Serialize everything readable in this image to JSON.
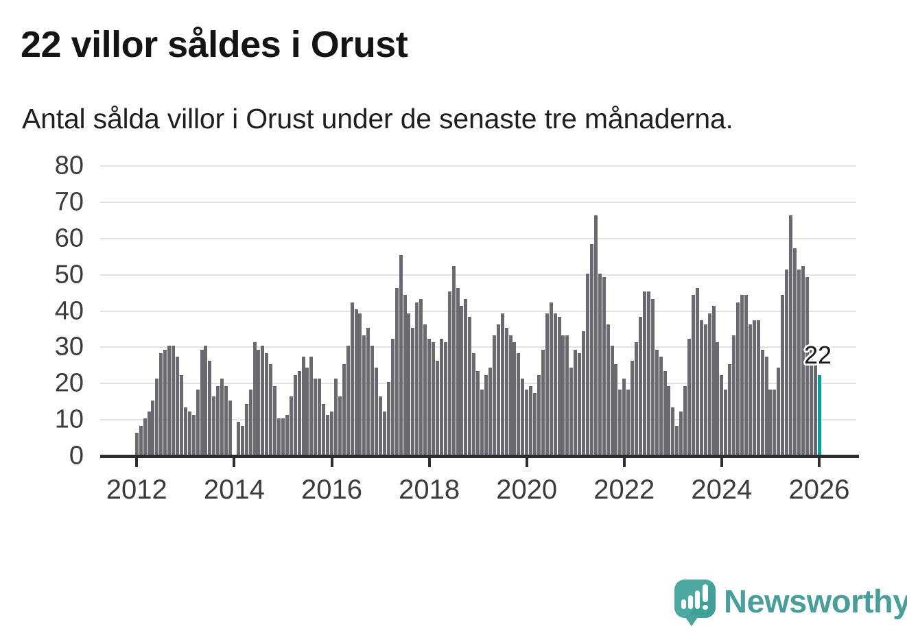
{
  "header": {
    "title": "22 villor såldes i Orust",
    "subtitle": "Antal sålda villor i Orust under de senaste tre månaderna."
  },
  "chart_data": {
    "type": "bar",
    "title": "22 villor såldes i Orust",
    "subtitle": "Antal sålda villor i Orust under de senaste tre månaderna.",
    "xlabel": "",
    "ylabel": "",
    "x_start": "2012-01",
    "x_frequency": "monthly",
    "x_tick_labels": [
      "2012",
      "2014",
      "2016",
      "2018",
      "2020",
      "2022",
      "2024",
      "2026"
    ],
    "x_tick_indices": [
      0,
      24,
      48,
      72,
      96,
      120,
      144,
      168
    ],
    "y_ticks": [
      0,
      10,
      20,
      30,
      40,
      50,
      60,
      70,
      80
    ],
    "ylim": [
      0,
      80
    ],
    "grid": "horizontal",
    "legend": "none",
    "values": [
      6,
      8,
      10,
      12,
      15,
      21,
      28,
      29,
      30,
      30,
      27,
      22,
      13,
      12,
      11,
      18,
      29,
      30,
      26,
      16,
      19,
      21,
      19,
      15,
      0,
      9,
      8,
      14,
      18,
      31,
      29,
      30,
      28,
      25,
      19,
      10,
      10,
      11,
      16,
      22,
      23,
      27,
      24,
      27,
      21,
      21,
      14,
      11,
      12,
      21,
      16,
      25,
      30,
      42,
      40,
      39,
      33,
      35,
      30,
      24,
      16,
      12,
      20,
      32,
      46,
      55,
      44,
      39,
      35,
      42,
      43,
      36,
      32,
      31,
      26,
      32,
      31,
      45,
      52,
      46,
      41,
      43,
      38,
      28,
      23,
      18,
      22,
      24,
      33,
      36,
      39,
      35,
      33,
      31,
      28,
      21,
      18,
      19,
      17,
      22,
      29,
      39,
      42,
      39,
      38,
      33,
      33,
      24,
      29,
      28,
      34,
      50,
      58,
      66,
      50,
      49,
      36,
      30,
      25,
      18,
      21,
      18,
      26,
      31,
      38,
      45,
      45,
      43,
      29,
      27,
      23,
      19,
      13,
      8,
      12,
      19,
      32,
      44,
      46,
      37,
      36,
      39,
      41,
      31,
      22,
      18,
      25,
      33,
      42,
      44,
      44,
      36,
      37,
      37,
      29,
      27,
      18,
      18,
      24,
      44,
      51,
      66,
      57,
      51,
      52,
      49,
      30,
      25,
      22
    ],
    "highlight": {
      "index": 168,
      "value": 22,
      "label": "22"
    },
    "bar_color": "#696a6f",
    "highlight_color": "#0a9e96"
  },
  "annotation": {
    "text": "22"
  },
  "footer": {
    "brand": "Newsworthy",
    "logo_icon": "bar-chart-exclamation-speech-bubble-icon"
  },
  "colors": {
    "background": "#ffffff",
    "title_text": "#141414",
    "axis_text": "#3b3b3b",
    "gridline": "#e3e3e3",
    "axis_line": "#2d2d2d",
    "bar": "#696a6f",
    "highlight": "#0a9e96",
    "brand_teal": "#4a9e99"
  }
}
